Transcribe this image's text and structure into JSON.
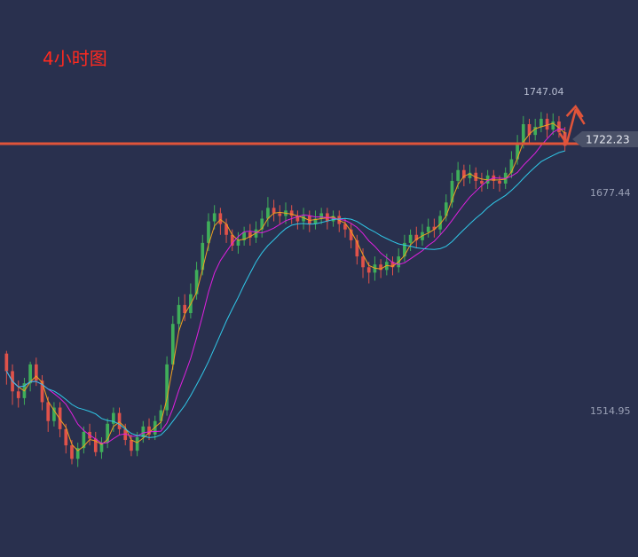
{
  "title": "4小时图",
  "colors": {
    "background": "#29304e",
    "up": "#3fae5a",
    "down": "#e0524a",
    "ma_fast": "#f0a020",
    "ma_mid": "#e020e0",
    "ma_slow": "#30c8e8",
    "resistance": "#e0543a",
    "price_tag": "#4a5168",
    "axis_text": "#9aa0b5"
  },
  "chart_data": {
    "type": "candlestick",
    "y_labels": [
      "1747.04",
      "1722.23",
      "1677.44",
      "1514.95"
    ],
    "ylim": [
      1420,
      1770
    ],
    "peak_label": "1747.04",
    "current_price_label": "1722.23",
    "resistance_level": 1712,
    "candles": [
      [
        1568,
        1555,
        1570,
        1545
      ],
      [
        1555,
        1540,
        1560,
        1530
      ],
      [
        1540,
        1535,
        1548,
        1528
      ],
      [
        1535,
        1546,
        1550,
        1530
      ],
      [
        1546,
        1560,
        1562,
        1540
      ],
      [
        1560,
        1548,
        1565,
        1544
      ],
      [
        1548,
        1532,
        1552,
        1526
      ],
      [
        1532,
        1518,
        1536,
        1510
      ],
      [
        1518,
        1528,
        1532,
        1514
      ],
      [
        1528,
        1512,
        1532,
        1506
      ],
      [
        1512,
        1500,
        1516,
        1494
      ],
      [
        1500,
        1490,
        1504,
        1486
      ],
      [
        1490,
        1498,
        1502,
        1484
      ],
      [
        1498,
        1510,
        1514,
        1494
      ],
      [
        1510,
        1505,
        1516,
        1500
      ],
      [
        1505,
        1495,
        1510,
        1492
      ],
      [
        1495,
        1502,
        1506,
        1490
      ],
      [
        1502,
        1516,
        1520,
        1498
      ],
      [
        1516,
        1524,
        1528,
        1510
      ],
      [
        1524,
        1512,
        1528,
        1508
      ],
      [
        1512,
        1504,
        1516,
        1500
      ],
      [
        1504,
        1496,
        1508,
        1492
      ],
      [
        1496,
        1506,
        1510,
        1492
      ],
      [
        1506,
        1514,
        1518,
        1502
      ],
      [
        1514,
        1508,
        1520,
        1504
      ],
      [
        1508,
        1518,
        1522,
        1504
      ],
      [
        1518,
        1526,
        1530,
        1512
      ],
      [
        1526,
        1560,
        1566,
        1522
      ],
      [
        1560,
        1590,
        1596,
        1556
      ],
      [
        1590,
        1604,
        1610,
        1584
      ],
      [
        1604,
        1598,
        1612,
        1592
      ],
      [
        1598,
        1612,
        1620,
        1594
      ],
      [
        1612,
        1630,
        1636,
        1608
      ],
      [
        1630,
        1650,
        1656,
        1626
      ],
      [
        1650,
        1666,
        1672,
        1644
      ],
      [
        1666,
        1672,
        1678,
        1660
      ],
      [
        1672,
        1664,
        1676,
        1656
      ],
      [
        1664,
        1656,
        1668,
        1650
      ],
      [
        1656,
        1648,
        1660,
        1644
      ],
      [
        1648,
        1652,
        1658,
        1642
      ],
      [
        1652,
        1658,
        1662,
        1648
      ],
      [
        1658,
        1654,
        1664,
        1648
      ],
      [
        1654,
        1660,
        1666,
        1650
      ],
      [
        1660,
        1668,
        1674,
        1654
      ],
      [
        1668,
        1676,
        1684,
        1662
      ],
      [
        1676,
        1672,
        1682,
        1666
      ],
      [
        1672,
        1670,
        1678,
        1664
      ],
      [
        1670,
        1674,
        1680,
        1664
      ],
      [
        1674,
        1670,
        1678,
        1664
      ],
      [
        1670,
        1666,
        1674,
        1660
      ],
      [
        1666,
        1670,
        1676,
        1660
      ],
      [
        1670,
        1664,
        1674,
        1658
      ],
      [
        1664,
        1668,
        1674,
        1660
      ],
      [
        1668,
        1672,
        1676,
        1664
      ],
      [
        1672,
        1666,
        1676,
        1660
      ],
      [
        1666,
        1670,
        1674,
        1662
      ],
      [
        1670,
        1664,
        1674,
        1658
      ],
      [
        1664,
        1660,
        1668,
        1654
      ],
      [
        1660,
        1652,
        1664,
        1646
      ],
      [
        1652,
        1640,
        1656,
        1634
      ],
      [
        1640,
        1632,
        1646,
        1624
      ],
      [
        1632,
        1628,
        1636,
        1620
      ],
      [
        1628,
        1634,
        1640,
        1622
      ],
      [
        1634,
        1630,
        1638,
        1624
      ],
      [
        1630,
        1636,
        1642,
        1626
      ],
      [
        1636,
        1632,
        1640,
        1626
      ],
      [
        1632,
        1640,
        1646,
        1628
      ],
      [
        1640,
        1650,
        1656,
        1636
      ],
      [
        1650,
        1656,
        1660,
        1644
      ],
      [
        1656,
        1652,
        1662,
        1646
      ],
      [
        1652,
        1658,
        1664,
        1648
      ],
      [
        1658,
        1662,
        1668,
        1654
      ],
      [
        1662,
        1660,
        1668,
        1654
      ],
      [
        1660,
        1670,
        1674,
        1656
      ],
      [
        1670,
        1680,
        1686,
        1666
      ],
      [
        1680,
        1696,
        1702,
        1676
      ],
      [
        1696,
        1704,
        1710,
        1690
      ],
      [
        1704,
        1698,
        1708,
        1692
      ],
      [
        1698,
        1702,
        1708,
        1694
      ],
      [
        1702,
        1696,
        1706,
        1690
      ],
      [
        1696,
        1694,
        1702,
        1688
      ],
      [
        1694,
        1700,
        1704,
        1690
      ],
      [
        1700,
        1696,
        1704,
        1690
      ],
      [
        1696,
        1694,
        1700,
        1688
      ],
      [
        1694,
        1702,
        1706,
        1690
      ],
      [
        1702,
        1712,
        1718,
        1698
      ],
      [
        1712,
        1724,
        1730,
        1708
      ],
      [
        1724,
        1738,
        1744,
        1720
      ],
      [
        1738,
        1730,
        1742,
        1724
      ],
      [
        1730,
        1736,
        1742,
        1726
      ],
      [
        1736,
        1742,
        1747,
        1732
      ],
      [
        1742,
        1734,
        1746,
        1728
      ],
      [
        1734,
        1740,
        1746,
        1730
      ],
      [
        1740,
        1732,
        1744,
        1728
      ],
      [
        1732,
        1722,
        1736,
        1718
      ]
    ]
  }
}
